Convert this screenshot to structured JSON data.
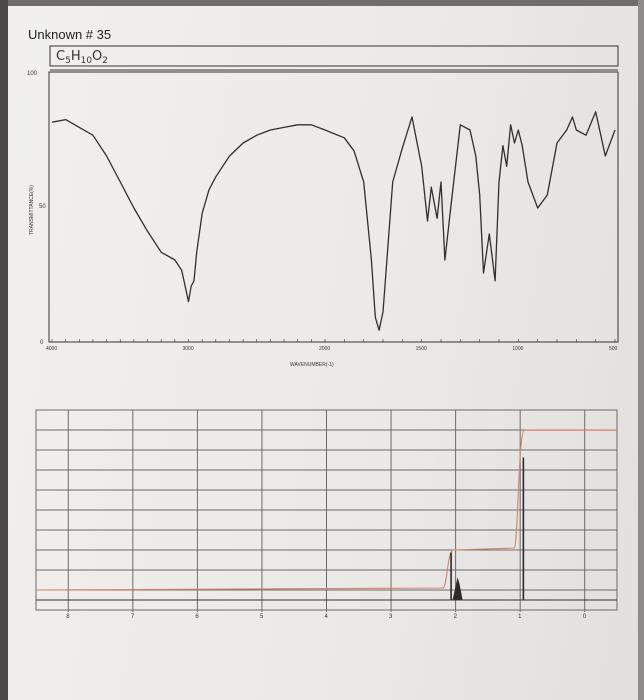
{
  "header": {
    "title": "Unknown # 35",
    "formula_parts": [
      "C",
      "5",
      "H",
      "10",
      "O",
      "2"
    ]
  },
  "chart_data": [
    {
      "type": "line",
      "chart": "ir_spectrum",
      "ylabel": "TRANSMITTANCE(%)",
      "xlabel": "WAVENUMBER(-1)",
      "xlim": [
        4000,
        500
      ],
      "ylim": [
        0,
        100
      ],
      "x_tick_labels": [
        "4000",
        "3000",
        "2000",
        "1500",
        "1000",
        "500"
      ],
      "y_tick_labels": [
        "100",
        "50",
        "0"
      ],
      "series": [
        {
          "x": [
            4000,
            3900,
            3700,
            3600,
            3500,
            3400,
            3300,
            3200,
            3100,
            3050,
            3000,
            2980,
            2960,
            2940,
            2900,
            2850,
            2800,
            2700,
            2600,
            2500,
            2400,
            2300,
            2200,
            2100,
            2000,
            1900,
            1850,
            1800,
            1760,
            1740,
            1720,
            1700,
            1680,
            1650,
            1600,
            1550,
            1500,
            1470,
            1450,
            1420,
            1400,
            1380,
            1350,
            1300,
            1250,
            1220,
            1200,
            1180,
            1150,
            1120,
            1100,
            1080,
            1060,
            1040,
            1020,
            1000,
            980,
            950,
            900,
            850,
            800,
            750,
            720,
            700,
            650,
            600,
            550,
            500
          ],
          "y": [
            83,
            84,
            78,
            70,
            60,
            50,
            41,
            33,
            30,
            26,
            14,
            20,
            22,
            33,
            48,
            57,
            62,
            70,
            75,
            78,
            80,
            81,
            82,
            82,
            80,
            77,
            72,
            60,
            30,
            8,
            3,
            10,
            30,
            60,
            73,
            85,
            66,
            45,
            58,
            46,
            60,
            30,
            50,
            82,
            80,
            70,
            55,
            25,
            40,
            22,
            60,
            74,
            66,
            82,
            75,
            80,
            74,
            60,
            50,
            55,
            75,
            80,
            85,
            80,
            78,
            87,
            70,
            80
          ]
        }
      ]
    },
    {
      "type": "line",
      "chart": "h_nmr_spectrum",
      "xlim": [
        8.5,
        -0.5
      ],
      "x_tick_labels": [
        "8",
        "7",
        "6",
        "5",
        "4",
        "3",
        "2",
        "1",
        "0"
      ],
      "peaks": [
        {
          "shift": 2.07,
          "height": 0.25,
          "type": "singlet"
        },
        {
          "shift": 1.97,
          "height": 0.12,
          "type": "multiplet"
        },
        {
          "shift": 0.95,
          "height": 0.75,
          "type": "singlet"
        }
      ],
      "integral_steps": [
        {
          "shift": 2.1,
          "rise": 0.2
        },
        {
          "shift": 1.0,
          "rise": 0.62
        }
      ]
    }
  ],
  "colors": {
    "ink": "#2b2b2b",
    "grid": "#6b6b6b",
    "integral": "#d9826f",
    "paper": "#eeece9"
  }
}
